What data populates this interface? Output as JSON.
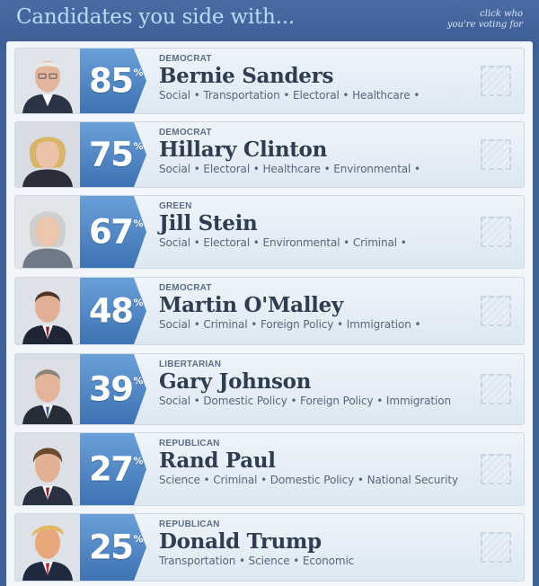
{
  "header": {
    "title": "Candidates you side with...",
    "hint_line1": "click who",
    "hint_line2": "you're voting for"
  },
  "colors": {
    "header_bg": "#3f5f98",
    "title": "#b9dcf6",
    "badge_blue": "#4f86c6",
    "name": "#2e3d4f"
  },
  "candidates": [
    {
      "percent": "85",
      "party": "DEMOCRAT",
      "name": "Bernie Sanders",
      "topics": "Social • Transportation • Electoral • Healthcare •",
      "photo": "bernie-sanders-photo"
    },
    {
      "percent": "75",
      "party": "DEMOCRAT",
      "name": "Hillary Clinton",
      "topics": "Social • Electoral • Healthcare • Environmental •",
      "photo": "hillary-clinton-photo"
    },
    {
      "percent": "67",
      "party": "GREEN",
      "name": "Jill Stein",
      "topics": "Social • Electoral • Environmental • Criminal •",
      "photo": "jill-stein-photo"
    },
    {
      "percent": "48",
      "party": "DEMOCRAT",
      "name": "Martin O'Malley",
      "topics": "Social • Criminal • Foreign Policy • Immigration •",
      "photo": "martin-omalley-photo"
    },
    {
      "percent": "39",
      "party": "LIBERTARIAN",
      "name": "Gary Johnson",
      "topics": "Social • Domestic Policy • Foreign Policy • Immigration",
      "photo": "gary-johnson-photo"
    },
    {
      "percent": "27",
      "party": "REPUBLICAN",
      "name": "Rand Paul",
      "topics": "Science • Criminal • Domestic Policy • National Security",
      "photo": "rand-paul-photo"
    },
    {
      "percent": "25",
      "party": "REPUBLICAN",
      "name": "Donald Trump",
      "topics": "Transportation • Science • Economic",
      "photo": "donald-trump-photo"
    }
  ]
}
